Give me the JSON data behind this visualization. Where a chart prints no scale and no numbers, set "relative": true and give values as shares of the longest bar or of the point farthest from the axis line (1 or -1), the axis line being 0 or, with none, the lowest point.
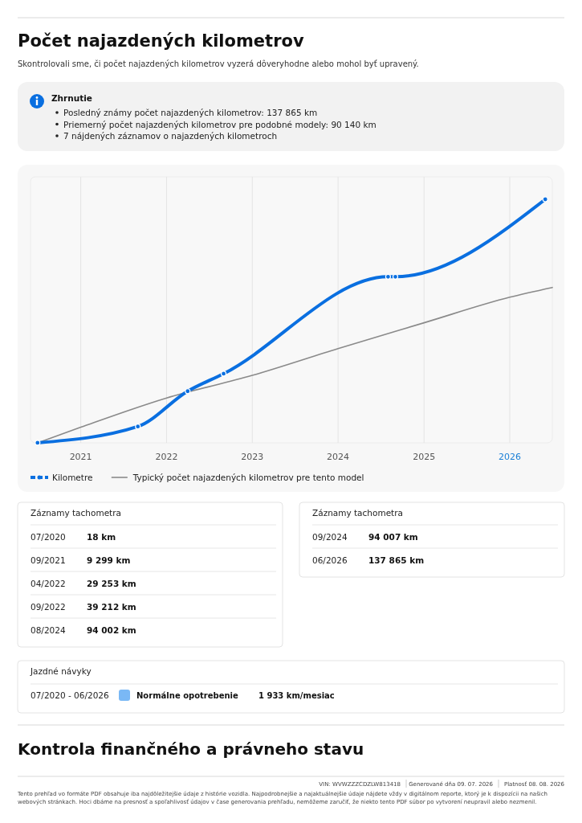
{
  "chart_data": {
    "type": "line",
    "title": "Počet najazdených kilometrov",
    "subtitle": "Skontrolovali sme, či počet najazdených kilometrov vyzerá dôveryhodne alebo mohol byť upravený.",
    "xlim": [
      "2020-06-01",
      "2026-07-01"
    ],
    "xticks": [
      {
        "value": "2021-01-01",
        "label": "2021"
      },
      {
        "value": "2022-01-01",
        "label": "2022"
      },
      {
        "value": "2023-01-01",
        "label": "2023"
      },
      {
        "value": "2024-01-01",
        "label": "2024"
      },
      {
        "value": "2025-01-01",
        "label": "2025"
      },
      {
        "value": "2026-01-01",
        "label": "2026"
      }
    ],
    "relative": true,
    "tick_labels": "x",
    "grid": "x",
    "legend": "bottom left",
    "series": [
      {
        "name": "Kilometre",
        "color": "#0a6fe0",
        "marker": "circle",
        "x": [
          "2020-07",
          "2021-09",
          "2022-04",
          "2022-09",
          "2024-08",
          "2024-09",
          "2026-06"
        ],
        "values": [
          0.0001,
          0.067,
          0.212,
          0.284,
          0.682,
          0.682,
          1
        ]
      },
      {
        "name": "Typický počet najazdených kilometrov pre tento model",
        "color": "#8a8a8a",
        "marker": "none",
        "x": [
          "2020-07",
          "2021-01",
          "2022-01",
          "2023-01",
          "2024-01",
          "2025-01",
          "2026-01",
          "2026-07"
        ],
        "values": [
          0,
          0.064,
          0.184,
          0.277,
          0.387,
          0.493,
          0.598,
          0.638
        ]
      }
    ],
    "annotations": [
      "Zhrnutie",
      "Posledný známy počet najazdených kilometrov: 137 865 km",
      "Priemerný počet najazdených kilometrov pre podobné modely: 90 140 km",
      "7 nájdených záznamov o najazdených kilometroch",
      "Záznamy tachometra",
      "07/2020",
      "18 km",
      "09/2021",
      "9 299 km",
      "04/2022",
      "29 253 km",
      "09/2022",
      "39 212 km",
      "08/2024",
      "94 002 km",
      "Záznamy tachometra",
      "09/2024",
      "94 007 km",
      "06/2026",
      "137 865 km",
      "Jazdné návyky",
      "07/2020 - 06/2026",
      "Normálne opotrebenie",
      "1 933 km/mesiac",
      "Kontrola finančného a právneho stavu",
      "VIN: WVWZZZCDZLW813418",
      "Generované dňa 09. 07. 2026",
      "Platnosť 08. 08. 2026",
      "Tento prehľad vo formáte PDF obsahuje iba najdôležitejšie údaje z histórie vozidla. Najpodrobnejšie a najaktuálnejšie údaje nájdete vždy v digitálnom reporte, ktorý je k dispozícii na našich",
      "webových stránkach. Hoci dbáme na presnosť a spoľahlivosť údajov v čase generovania prehľadu, nemôžeme zaručiť, že niekto tento PDF súbor po vytvorení neupravil alebo nezmenil."
    ]
  }
}
